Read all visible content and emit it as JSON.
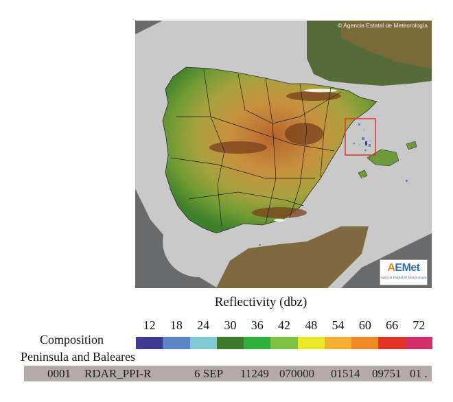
{
  "map": {
    "copyright": "© Agencia Estatal de Meteorología",
    "logo": {
      "mark_a": "A",
      "mark_rest": "EMet",
      "subtitle": "Agencia Estatal de Meteorología"
    }
  },
  "legend": {
    "title": "Reflectivity (dbz)",
    "ticks": [
      "12",
      "18",
      "24",
      "30",
      "36",
      "42",
      "48",
      "54",
      "60",
      "66",
      "72"
    ],
    "colors": [
      "#3e3b8f",
      "#5b86c6",
      "#7fcad3",
      "#3c7a2c",
      "#2fae3a",
      "#7cc345",
      "#eaea2a",
      "#f5b031",
      "#f08a24",
      "#e33525",
      "#d62e6c"
    ]
  },
  "composition": {
    "line1": "Composition",
    "line2": "Peninsula and Baleares"
  },
  "info_bar": {
    "id": "0001",
    "product": "RDAR_PPI-R",
    "date": "6 SEP",
    "f1": "11249",
    "f2": "070000",
    "f3": "01514",
    "f4": "09751",
    "f5": "01 ."
  }
}
